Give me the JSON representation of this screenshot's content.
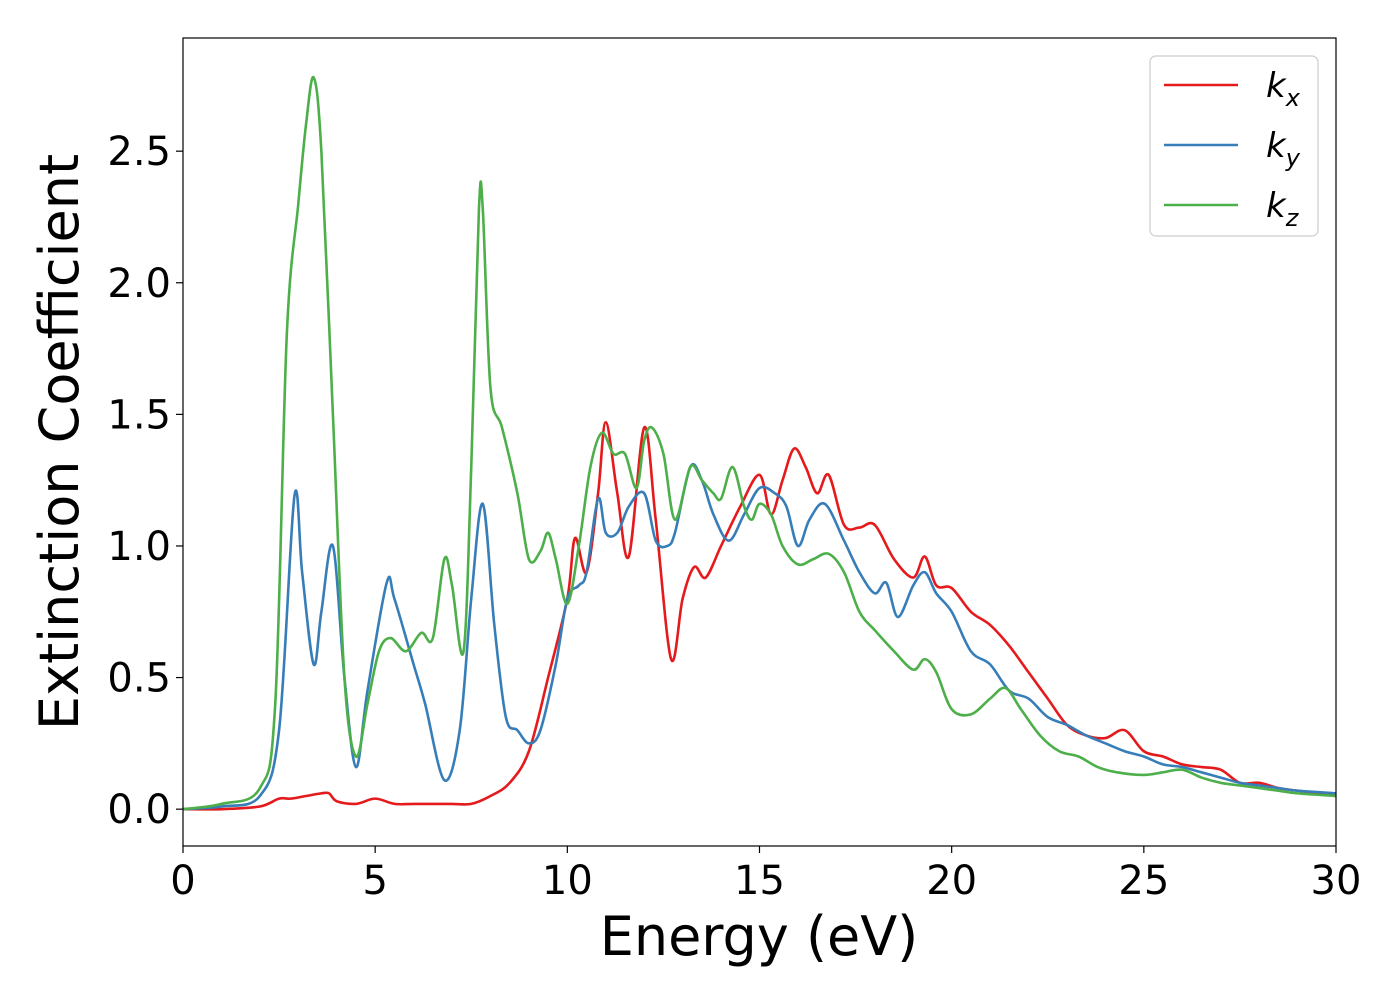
{
  "chart_data": {
    "type": "line",
    "xlabel": "Energy (eV)",
    "ylabel": "Extinction Coefficient",
    "xlim": [
      0,
      30
    ],
    "ylim": [
      -0.14,
      2.93
    ],
    "xticks": [
      0,
      5,
      10,
      15,
      20,
      25,
      30
    ],
    "xtick_labels": [
      "0",
      "5",
      "10",
      "15",
      "20",
      "25",
      "30"
    ],
    "yticks": [
      0.0,
      0.5,
      1.0,
      1.5,
      2.0,
      2.5
    ],
    "ytick_labels": [
      "0.0",
      "0.5",
      "1.0",
      "1.5",
      "2.0",
      "2.5"
    ],
    "grid": false,
    "legend_position": "top-right",
    "series": [
      {
        "name": "k_x",
        "label_base": "k",
        "label_sub": "x",
        "color": "#e41a1c",
        "x": [
          0,
          1,
          2,
          2.5,
          2.8,
          3.2,
          3.6,
          3.8,
          4.0,
          4.5,
          5.0,
          5.5,
          6.0,
          6.5,
          7.0,
          7.5,
          8.0,
          8.5,
          9.0,
          9.5,
          10.0,
          10.2,
          10.5,
          10.8,
          11.0,
          11.3,
          11.6,
          12.0,
          12.3,
          12.7,
          13.0,
          13.3,
          13.6,
          14.0,
          14.5,
          15.0,
          15.3,
          15.6,
          15.9,
          16.2,
          16.5,
          16.8,
          17.2,
          17.6,
          18.0,
          18.5,
          19.0,
          19.3,
          19.6,
          20.0,
          20.5,
          21.0,
          21.5,
          22.0,
          22.5,
          23.0,
          23.5,
          24.0,
          24.5,
          25.0,
          25.5,
          26.0,
          26.5,
          27.0,
          27.5,
          28.0,
          28.5,
          29.0,
          30.0
        ],
        "y": [
          0.0,
          0.0,
          0.01,
          0.04,
          0.04,
          0.05,
          0.06,
          0.06,
          0.03,
          0.02,
          0.04,
          0.02,
          0.02,
          0.02,
          0.02,
          0.02,
          0.05,
          0.1,
          0.22,
          0.5,
          0.8,
          1.03,
          0.9,
          1.2,
          1.47,
          1.2,
          0.96,
          1.45,
          1.1,
          0.57,
          0.8,
          0.92,
          0.88,
          1.0,
          1.15,
          1.27,
          1.12,
          1.25,
          1.37,
          1.3,
          1.2,
          1.27,
          1.08,
          1.07,
          1.08,
          0.95,
          0.88,
          0.96,
          0.85,
          0.84,
          0.75,
          0.7,
          0.62,
          0.52,
          0.42,
          0.32,
          0.28,
          0.27,
          0.3,
          0.22,
          0.2,
          0.17,
          0.16,
          0.15,
          0.1,
          0.1,
          0.08,
          0.07,
          0.05
        ]
      },
      {
        "name": "k_y",
        "label_base": "k",
        "label_sub": "y",
        "color": "#377eb8",
        "x": [
          0,
          1,
          2,
          2.5,
          2.9,
          3.1,
          3.4,
          3.6,
          3.9,
          4.2,
          4.5,
          4.8,
          5.3,
          5.5,
          6.0,
          6.3,
          6.8,
          7.2,
          7.5,
          7.8,
          8.1,
          8.4,
          8.7,
          9.0,
          9.3,
          9.7,
          10.0,
          10.3,
          10.5,
          10.8,
          11.0,
          11.3,
          11.6,
          12.0,
          12.3,
          12.6,
          12.8,
          13.2,
          13.5,
          13.8,
          14.2,
          14.6,
          15.0,
          15.4,
          15.7,
          16.0,
          16.3,
          16.7,
          17.2,
          17.6,
          18.0,
          18.3,
          18.6,
          19.0,
          19.3,
          19.6,
          20.0,
          20.5,
          21.0,
          21.5,
          22.0,
          22.5,
          23.0,
          23.5,
          24.0,
          24.5,
          25.0,
          25.5,
          26.0,
          26.5,
          27.0,
          27.5,
          28.0,
          28.5,
          29.0,
          30.0
        ],
        "y": [
          0.0,
          0.01,
          0.05,
          0.3,
          1.19,
          0.9,
          0.55,
          0.75,
          1.0,
          0.5,
          0.16,
          0.45,
          0.86,
          0.8,
          0.55,
          0.4,
          0.11,
          0.3,
          0.8,
          1.16,
          0.7,
          0.35,
          0.3,
          0.25,
          0.3,
          0.55,
          0.8,
          0.85,
          0.9,
          1.18,
          1.05,
          1.05,
          1.15,
          1.2,
          1.02,
          1.0,
          1.05,
          1.3,
          1.25,
          1.12,
          1.02,
          1.12,
          1.22,
          1.2,
          1.15,
          1.0,
          1.1,
          1.16,
          1.02,
          0.9,
          0.82,
          0.86,
          0.73,
          0.85,
          0.9,
          0.82,
          0.75,
          0.6,
          0.55,
          0.45,
          0.42,
          0.35,
          0.32,
          0.28,
          0.25,
          0.22,
          0.2,
          0.17,
          0.16,
          0.14,
          0.12,
          0.1,
          0.09,
          0.08,
          0.07,
          0.06
        ]
      },
      {
        "name": "k_z",
        "label_base": "k",
        "label_sub": "z",
        "color": "#4daf4a",
        "x": [
          0,
          1,
          2,
          2.4,
          2.7,
          3.0,
          3.2,
          3.4,
          3.6,
          3.9,
          4.2,
          4.5,
          4.8,
          5.1,
          5.4,
          5.8,
          6.2,
          6.5,
          6.8,
          7.0,
          7.3,
          7.5,
          7.7,
          7.8,
          8.0,
          8.3,
          8.7,
          9.0,
          9.3,
          9.5,
          9.7,
          10.0,
          10.3,
          10.6,
          10.9,
          11.2,
          11.5,
          11.8,
          12.0,
          12.2,
          12.5,
          12.8,
          13.2,
          13.5,
          13.8,
          14.0,
          14.3,
          14.6,
          14.8,
          15.0,
          15.3,
          15.6,
          16.0,
          16.4,
          16.8,
          17.2,
          17.6,
          18.0,
          18.5,
          19.0,
          19.3,
          19.6,
          20.0,
          20.5,
          21.0,
          21.4,
          21.8,
          22.3,
          22.8,
          23.3,
          23.8,
          24.3,
          25.0,
          25.5,
          26.0,
          26.5,
          27.0,
          27.5,
          28.0,
          28.5,
          29.0,
          30.0
        ],
        "y": [
          0.0,
          0.02,
          0.08,
          0.4,
          1.8,
          2.3,
          2.6,
          2.78,
          2.5,
          1.5,
          0.5,
          0.2,
          0.4,
          0.6,
          0.65,
          0.6,
          0.67,
          0.65,
          0.95,
          0.85,
          0.6,
          1.3,
          2.28,
          2.28,
          1.6,
          1.45,
          1.2,
          0.95,
          0.98,
          1.05,
          0.95,
          0.78,
          1.0,
          1.3,
          1.43,
          1.35,
          1.35,
          1.22,
          1.4,
          1.45,
          1.35,
          1.1,
          1.3,
          1.25,
          1.2,
          1.18,
          1.3,
          1.15,
          1.1,
          1.16,
          1.12,
          1.0,
          0.93,
          0.95,
          0.97,
          0.9,
          0.75,
          0.68,
          0.6,
          0.53,
          0.57,
          0.52,
          0.38,
          0.36,
          0.42,
          0.46,
          0.38,
          0.28,
          0.22,
          0.2,
          0.16,
          0.14,
          0.13,
          0.14,
          0.15,
          0.12,
          0.1,
          0.09,
          0.08,
          0.07,
          0.06,
          0.05
        ]
      }
    ]
  }
}
